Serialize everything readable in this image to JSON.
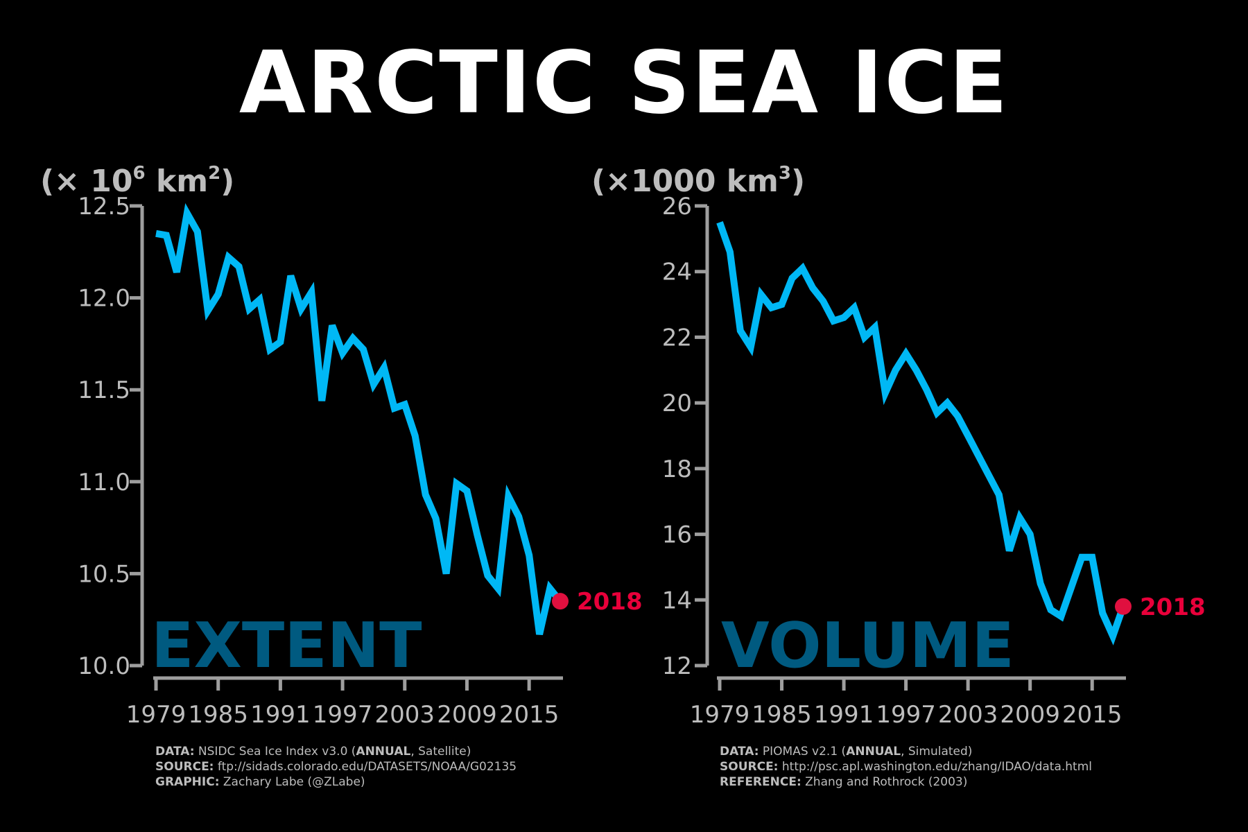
{
  "title": "ARCTIC SEA ICE",
  "colors": {
    "line": "#00b8f5",
    "last_point": "#e0103f",
    "axis": "#9e9e9e",
    "label": "#005a80"
  },
  "chart_data": [
    {
      "type": "line",
      "name": "EXTENT",
      "unit": {
        "prefix": "(× 10",
        "sup": "6",
        "mid": " km",
        "sup2": "2",
        "suffix": ")"
      },
      "x": [
        1979,
        1980,
        1981,
        1982,
        1983,
        1984,
        1985,
        1986,
        1987,
        1988,
        1989,
        1990,
        1991,
        1992,
        1993,
        1994,
        1995,
        1996,
        1997,
        1998,
        1999,
        2000,
        2001,
        2002,
        2003,
        2004,
        2005,
        2006,
        2007,
        2008,
        2009,
        2010,
        2011,
        2012,
        2013,
        2014,
        2015,
        2016,
        2017,
        2018
      ],
      "y": [
        12.35,
        12.34,
        12.14,
        12.46,
        12.36,
        11.93,
        12.02,
        12.22,
        12.17,
        11.94,
        11.99,
        11.72,
        11.76,
        12.12,
        11.94,
        12.03,
        11.44,
        11.85,
        11.7,
        11.78,
        11.72,
        11.53,
        11.62,
        11.4,
        11.42,
        11.25,
        10.93,
        10.8,
        10.5,
        10.99,
        10.95,
        10.71,
        10.49,
        10.42,
        10.92,
        10.81,
        10.6,
        10.17,
        10.42,
        10.35
      ],
      "ylim": [
        10.0,
        12.5
      ],
      "yticks": [
        "10.0",
        "10.5",
        "11.0",
        "11.5",
        "12.0",
        "12.5"
      ],
      "xticks": [
        "1979",
        "1985",
        "1991",
        "1997",
        "2003",
        "2009",
        "2015"
      ],
      "xlim": [
        1979,
        2018
      ],
      "last_label": "2018",
      "grid": false
    },
    {
      "type": "line",
      "name": "VOLUME",
      "unit": {
        "prefix": "(×",
        "sup": "",
        "mid": "1000 km",
        "sup2": "3",
        "suffix": ")"
      },
      "x": [
        1979,
        1980,
        1981,
        1982,
        1983,
        1984,
        1985,
        1986,
        1987,
        1988,
        1989,
        1990,
        1991,
        1992,
        1993,
        1994,
        1995,
        1996,
        1997,
        1998,
        1999,
        2000,
        2001,
        2002,
        2003,
        2004,
        2005,
        2006,
        2007,
        2008,
        2009,
        2010,
        2011,
        2012,
        2013,
        2014,
        2015,
        2016,
        2017,
        2018
      ],
      "y": [
        25.5,
        24.6,
        22.2,
        21.7,
        23.3,
        22.9,
        23.0,
        23.8,
        24.1,
        23.5,
        23.1,
        22.5,
        22.6,
        22.9,
        22.0,
        22.3,
        20.3,
        21.0,
        21.5,
        21.0,
        20.4,
        19.7,
        20.0,
        19.6,
        19.0,
        18.4,
        17.8,
        17.2,
        15.5,
        16.5,
        16.0,
        14.5,
        13.7,
        13.5,
        14.4,
        15.3,
        15.3,
        13.6,
        12.9,
        13.8
      ],
      "ylim": [
        12,
        26
      ],
      "yticks": [
        "12",
        "14",
        "16",
        "18",
        "20",
        "22",
        "24",
        "26"
      ],
      "xticks": [
        "1979",
        "1985",
        "1991",
        "1997",
        "2003",
        "2009",
        "2015"
      ],
      "xlim": [
        1979,
        2018
      ],
      "last_label": "2018",
      "grid": false
    }
  ],
  "credits": [
    {
      "lines": [
        {
          "key": "DATA:",
          "text1": " NSIDC Sea Ice Index v3.0 (",
          "bold": "ANNUAL",
          "text2": ", Satellite)"
        },
        {
          "key": "SOURCE:",
          "text1": " ftp://sidads.colorado.edu/DATASETS/NOAA/G02135",
          "bold": "",
          "text2": ""
        },
        {
          "key": "GRAPHIC:",
          "text1": " Zachary Labe (@ZLabe)",
          "bold": "",
          "text2": ""
        }
      ]
    },
    {
      "lines": [
        {
          "key": "DATA:",
          "text1": " PIOMAS v2.1 (",
          "bold": "ANNUAL",
          "text2": ", Simulated)"
        },
        {
          "key": "SOURCE:",
          "text1": " http://psc.apl.washington.edu/zhang/IDAO/data.html",
          "bold": "",
          "text2": ""
        },
        {
          "key": "REFERENCE:",
          "text1": " Zhang and Rothrock (2003)",
          "bold": "",
          "text2": ""
        }
      ]
    }
  ]
}
